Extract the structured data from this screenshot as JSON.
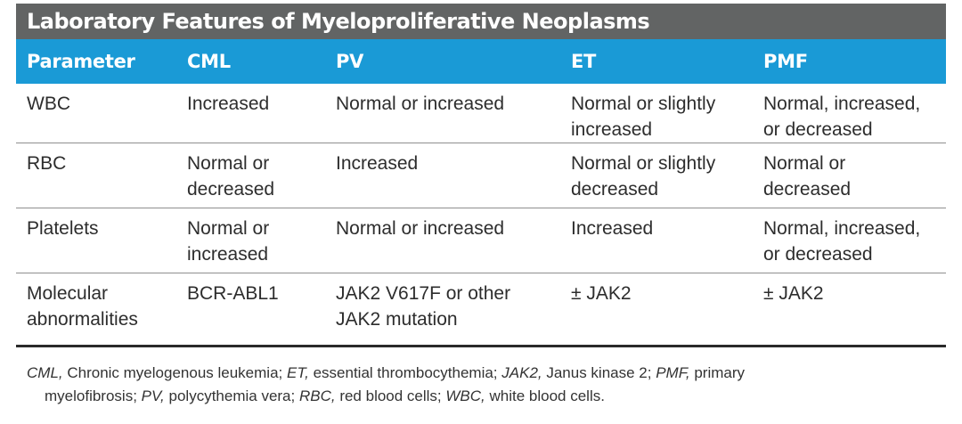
{
  "title": "Laboratory Features of Myeloproliferative Neoplasms",
  "table": {
    "headers": [
      "Parameter",
      "CML",
      "PV",
      "ET",
      "PMF"
    ],
    "rows": [
      {
        "parameter": [
          "WBC"
        ],
        "cml": [
          "Increased"
        ],
        "pv": [
          "Normal or increased"
        ],
        "et": [
          "Normal or slightly",
          "increased"
        ],
        "pmf": [
          "Normal, increased,",
          "or decreased"
        ]
      },
      {
        "parameter": [
          "RBC"
        ],
        "cml": [
          "Normal or",
          "decreased"
        ],
        "pv": [
          "Increased"
        ],
        "et": [
          "Normal or slightly",
          "decreased"
        ],
        "pmf": [
          "Normal or",
          "decreased"
        ]
      },
      {
        "parameter": [
          "Platelets"
        ],
        "cml": [
          "Normal or",
          "increased"
        ],
        "pv": [
          "Normal or increased"
        ],
        "et": [
          "Increased"
        ],
        "pmf": [
          "Normal, increased,",
          "or decreased"
        ]
      },
      {
        "parameter": [
          "Molecular",
          "abnormalities"
        ],
        "cml": [
          "BCR-ABL1"
        ],
        "pv": [
          "JAK2 V617F or other",
          "JAK2 mutation"
        ],
        "et": [
          "± JAK2"
        ],
        "pmf": [
          "± JAK2"
        ]
      }
    ]
  },
  "footnote": {
    "entries": [
      {
        "abbr": "CML,",
        "text": " Chronic myelogenous leukemia; "
      },
      {
        "abbr": "ET,",
        "text": " essential thrombocythemia; "
      },
      {
        "abbr": "JAK2,",
        "text": " Janus kinase 2; "
      },
      {
        "abbr": "PMF,",
        "text": " primary"
      }
    ],
    "entries_line2": [
      {
        "abbr": "",
        "text": "myelofibrosis; "
      },
      {
        "abbr": "PV,",
        "text": " polycythemia vera; "
      },
      {
        "abbr": "RBC,",
        "text": " red blood cells; "
      },
      {
        "abbr": "WBC,",
        "text": " white blood cells."
      }
    ]
  }
}
